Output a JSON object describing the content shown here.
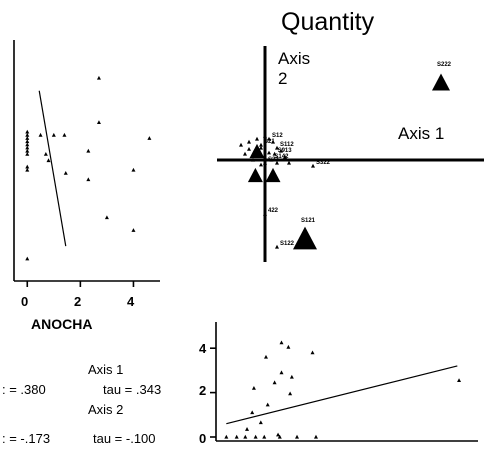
{
  "page_title": "Quantity",
  "colors": {
    "ink": "#000000",
    "background": "#ffffff"
  },
  "chart_data": [
    {
      "id": "ordination",
      "type": "scatter",
      "title": "Quantity",
      "axis1_label": "Axis 1",
      "axis2_label_line1": "Axis",
      "axis2_label_line2": "2",
      "grid": false,
      "species": [
        {
          "label": "S222",
          "x": 2.2,
          "y": 1.3,
          "marker": "big-triangle"
        },
        {
          "label": "S121",
          "x": 0.5,
          "y": -1.3,
          "marker": "big-triangle"
        },
        {
          "label": "S122",
          "x": 0.15,
          "y": -1.45,
          "marker": "dot"
        },
        {
          "label": "422",
          "x": 0.0,
          "y": -0.9,
          "marker": "dot"
        },
        {
          "label": "S322",
          "x": 0.6,
          "y": -0.1,
          "marker": "dot"
        },
        {
          "label": "S12",
          "x": 0.05,
          "y": 0.35,
          "marker": "dot"
        },
        {
          "label": "S112",
          "x": 0.15,
          "y": 0.2,
          "marker": "dot"
        },
        {
          "label": "S913",
          "x": 0.12,
          "y": 0.1,
          "marker": "dot"
        },
        {
          "label": "S142",
          "x": 0.08,
          "y": 0.0,
          "marker": "dot"
        },
        {
          "label": "S21",
          "x": -0.05,
          "y": 0.25,
          "marker": "dot"
        },
        {
          "label": "S33",
          "x": 0.0,
          "y": -0.05,
          "marker": "dot"
        }
      ],
      "cluster": [
        {
          "x": -0.3,
          "y": 0.25
        },
        {
          "x": -0.2,
          "y": 0.3
        },
        {
          "x": -0.1,
          "y": 0.35
        },
        {
          "x": 0.0,
          "y": 0.4
        },
        {
          "x": 0.1,
          "y": 0.3
        },
        {
          "x": -0.25,
          "y": 0.1
        },
        {
          "x": -0.05,
          "y": 0.2
        },
        {
          "x": 0.2,
          "y": 0.15
        },
        {
          "x": 0.25,
          "y": 0.05
        },
        {
          "x": -0.15,
          "y": 0.0
        },
        {
          "x": 0.15,
          "y": -0.05
        },
        {
          "x": 0.3,
          "y": -0.05
        },
        {
          "x": -0.05,
          "y": -0.08
        },
        {
          "x": 0.05,
          "y": 0.12
        },
        {
          "x": -0.2,
          "y": 0.18
        }
      ],
      "big_markers_unlabeled": [
        {
          "x": -0.1,
          "y": 0.15
        },
        {
          "x": -0.12,
          "y": -0.25
        },
        {
          "x": 0.1,
          "y": -0.25
        }
      ]
    },
    {
      "id": "anocha-scatter",
      "type": "scatter",
      "xlabel": "ANOCHA",
      "x_ticks": [
        "0",
        "2",
        "4"
      ],
      "xlim": [
        -0.5,
        5
      ],
      "ylim": [
        -1.9,
        1.9
      ],
      "grid": false,
      "points": [
        {
          "x": 0,
          "y": 0.45
        },
        {
          "x": 0,
          "y": 0.4
        },
        {
          "x": 0,
          "y": 0.35
        },
        {
          "x": 0,
          "y": 0.3
        },
        {
          "x": 0,
          "y": 0.25
        },
        {
          "x": 0,
          "y": 0.2
        },
        {
          "x": 0,
          "y": 0.15
        },
        {
          "x": 0,
          "y": 0.1
        },
        {
          "x": 0,
          "y": -0.1
        },
        {
          "x": 0,
          "y": -0.15
        },
        {
          "x": 0,
          "y": -1.55
        },
        {
          "x": 0.5,
          "y": 0.4
        },
        {
          "x": 0.7,
          "y": 0.1
        },
        {
          "x": 0.8,
          "y": 0.0
        },
        {
          "x": 1.0,
          "y": 0.4
        },
        {
          "x": 1.4,
          "y": 0.4
        },
        {
          "x": 1.45,
          "y": -0.2
        },
        {
          "x": 2.3,
          "y": 0.15
        },
        {
          "x": 2.3,
          "y": -0.3
        },
        {
          "x": 2.7,
          "y": 1.3
        },
        {
          "x": 2.7,
          "y": 0.6
        },
        {
          "x": 3.0,
          "y": -0.9
        },
        {
          "x": 4.0,
          "y": -0.15
        },
        {
          "x": 4.0,
          "y": -1.1
        },
        {
          "x": 4.6,
          "y": 0.35
        }
      ],
      "regression_line": [
        {
          "x": 0.45,
          "y": 1.1
        },
        {
          "x": 1.45,
          "y": -1.35
        }
      ]
    },
    {
      "id": "axis-correlations",
      "type": "table",
      "rows": [
        {
          "label": "Axis 1",
          "r_text": ": = .380",
          "tau_text": "tau = .343"
        },
        {
          "label": "Axis 2",
          "r_text": ": = -.173",
          "tau_text": "tau = -.100"
        }
      ]
    },
    {
      "id": "axis1-scatter",
      "type": "scatter",
      "y_ticks": [
        "4",
        "2",
        "0"
      ],
      "ylim": [
        -0.1,
        5
      ],
      "grid": false,
      "points": [
        {
          "x": 1.6,
          "y": 4.25
        },
        {
          "x": 1.8,
          "y": 4.05
        },
        {
          "x": 2.5,
          "y": 3.8
        },
        {
          "x": 1.15,
          "y": 3.6
        },
        {
          "x": 1.6,
          "y": 2.9
        },
        {
          "x": 1.9,
          "y": 2.7
        },
        {
          "x": 1.4,
          "y": 2.45
        },
        {
          "x": 0.8,
          "y": 2.2
        },
        {
          "x": 1.85,
          "y": 1.95
        },
        {
          "x": 1.2,
          "y": 1.45
        },
        {
          "x": 0.75,
          "y": 1.1
        },
        {
          "x": 1.0,
          "y": 0.65
        },
        {
          "x": 0.6,
          "y": 0.35
        },
        {
          "x": 1.5,
          "y": 0.1
        },
        {
          "x": 0.0,
          "y": 0.0
        },
        {
          "x": 0.3,
          "y": 0.0
        },
        {
          "x": 0.55,
          "y": 0.0
        },
        {
          "x": 0.85,
          "y": 0.0
        },
        {
          "x": 1.1,
          "y": 0.0
        },
        {
          "x": 1.55,
          "y": 0.0
        },
        {
          "x": 2.05,
          "y": 0.0
        },
        {
          "x": 2.6,
          "y": 0.0
        },
        {
          "x": 6.75,
          "y": 2.55
        }
      ],
      "xlim": [
        -0.3,
        7.3
      ],
      "regression_line": [
        {
          "x": 0.0,
          "y": 0.6
        },
        {
          "x": 6.7,
          "y": 3.2
        }
      ]
    }
  ]
}
